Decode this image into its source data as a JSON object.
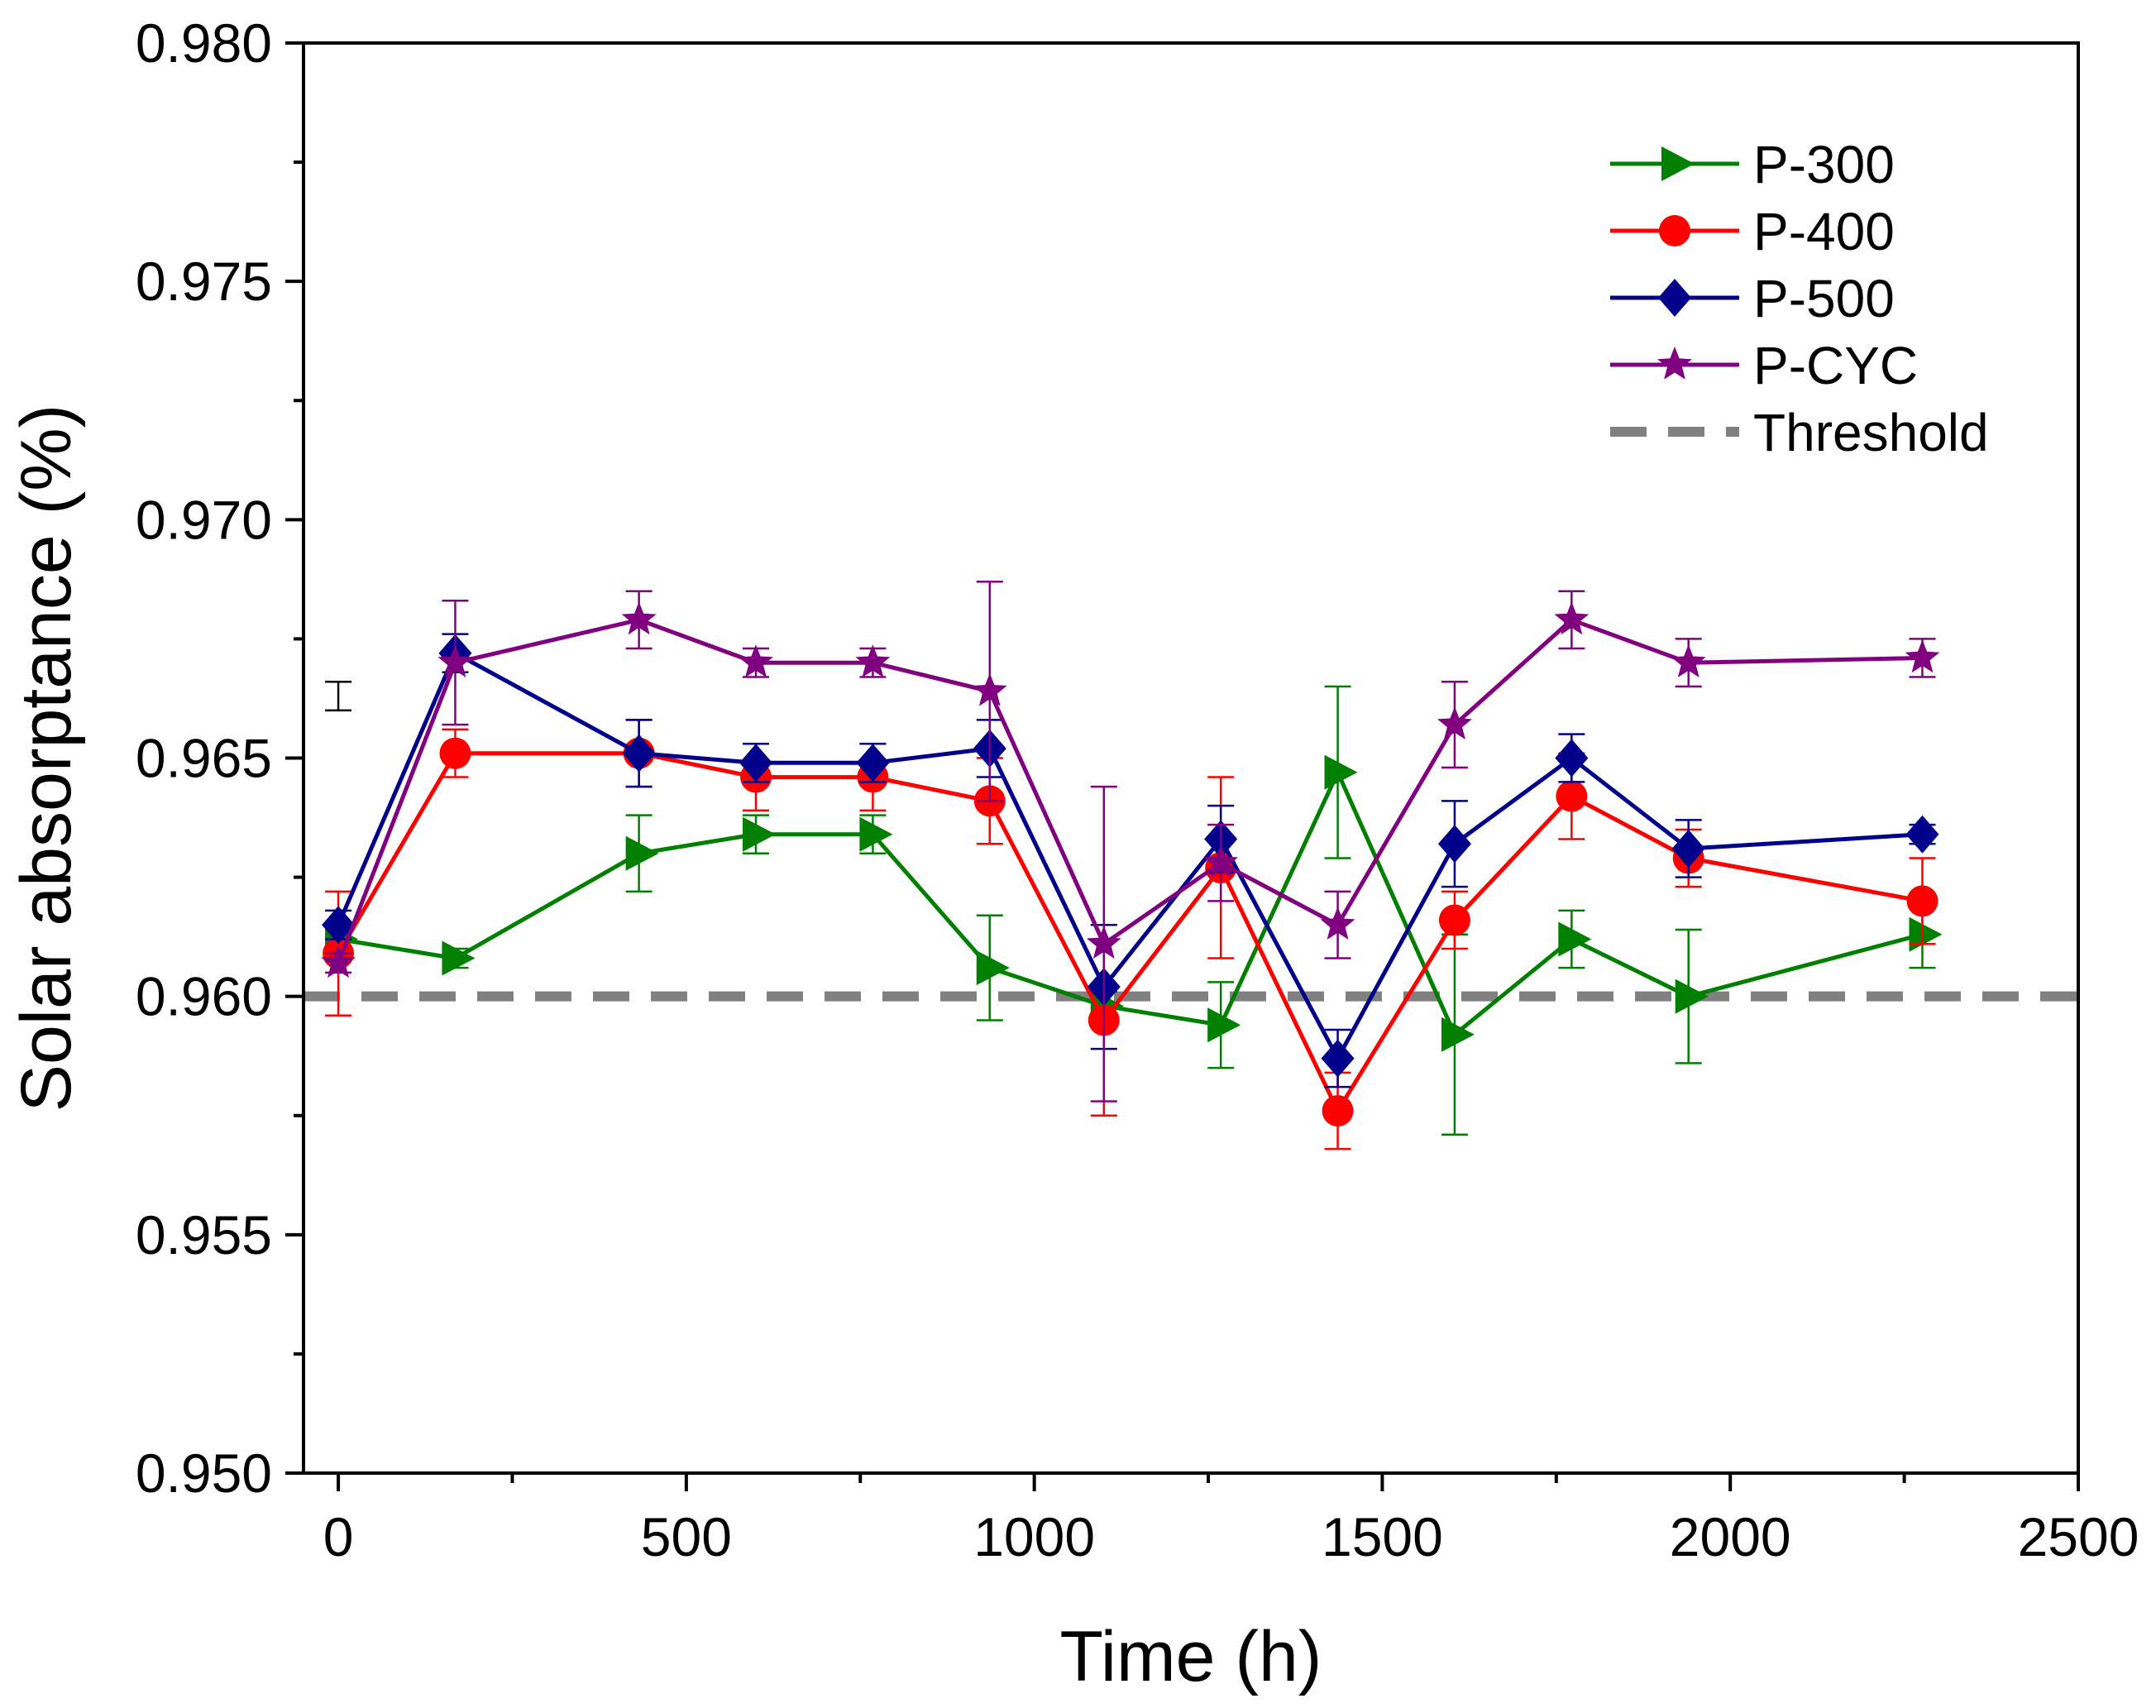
{
  "chart_data": {
    "type": "line",
    "title": "",
    "xlabel": "Time (h)",
    "ylabel": "Solar absorptance (%)",
    "xlim": [
      -50,
      2500
    ],
    "ylim": [
      0.95,
      0.98
    ],
    "x_ticks": [
      0,
      500,
      1000,
      1500,
      2000,
      2500
    ],
    "x_tick_labels": [
      "0",
      "500",
      "1000",
      "1500",
      "2000",
      "2500"
    ],
    "y_ticks": [
      0.95,
      0.955,
      0.96,
      0.965,
      0.97,
      0.975,
      0.98
    ],
    "y_tick_labels": [
      "0.950",
      "0.955",
      "0.960",
      "0.965",
      "0.970",
      "0.975",
      "0.980"
    ],
    "grid": false,
    "legend_position": "top-right",
    "x": [
      0,
      168,
      432,
      600,
      768,
      936,
      1100,
      1268,
      1436,
      1604,
      1772,
      1940,
      2276
    ],
    "series": [
      {
        "name": "P-300",
        "color": "#007f00",
        "marker": "triangle-right",
        "values": [
          0.9612,
          0.9608,
          0.963,
          0.9634,
          0.9634,
          0.9606,
          0.9598,
          0.9594,
          0.9647,
          0.9592,
          0.9612,
          0.96,
          0.9613
        ],
        "errors": [
          0.0002,
          0.0002,
          0.0008,
          0.0004,
          0.0004,
          0.0011,
          0.0003,
          0.0009,
          0.0018,
          0.0021,
          0.0006,
          0.0014,
          0.0007
        ]
      },
      {
        "name": "P-400",
        "color": "#ff0000",
        "marker": "circle",
        "values": [
          0.9609,
          0.9651,
          0.9651,
          0.9646,
          0.9646,
          0.9641,
          0.9595,
          0.9627,
          0.9576,
          0.9616,
          0.9642,
          0.9629,
          0.962
        ],
        "errors": [
          0.0013,
          0.0005,
          0.0007,
          0.0007,
          0.0007,
          0.0009,
          0.002,
          0.0019,
          0.0008,
          0.0006,
          0.0009,
          0.0006,
          0.0009
        ]
      },
      {
        "name": "P-500",
        "color": "#00008b",
        "marker": "diamond",
        "values": [
          0.9615,
          0.9672,
          0.9651,
          0.9649,
          0.9649,
          0.9652,
          0.9602,
          0.9633,
          0.9587,
          0.9632,
          0.965,
          0.9631,
          0.9634
        ],
        "errors": [
          0.0003,
          0.0004,
          0.0007,
          0.0004,
          0.0004,
          0.0006,
          0.0013,
          0.0007,
          0.0006,
          0.0009,
          0.0005,
          0.0006,
          0.0002
        ]
      },
      {
        "name": "P-CYC",
        "color": "#800080",
        "marker": "star",
        "values": [
          0.9607,
          0.967,
          0.9679,
          0.967,
          0.967,
          0.9664,
          0.9611,
          0.9628,
          0.9615,
          0.9657,
          0.9679,
          0.967,
          0.9671
        ],
        "errors": [
          0.0002,
          0.0013,
          0.0006,
          0.0003,
          0.0003,
          0.0023,
          0.0033,
          0.0008,
          0.0007,
          0.0009,
          0.0006,
          0.0005,
          0.0004
        ]
      }
    ],
    "threshold": {
      "name": "Threshold",
      "value": 0.96,
      "color": "#808080",
      "style": "dashed"
    },
    "annotation": {
      "x": 0,
      "y": 0.9663,
      "error": 0.0003,
      "color": "#000000",
      "type": "error-bar"
    }
  }
}
